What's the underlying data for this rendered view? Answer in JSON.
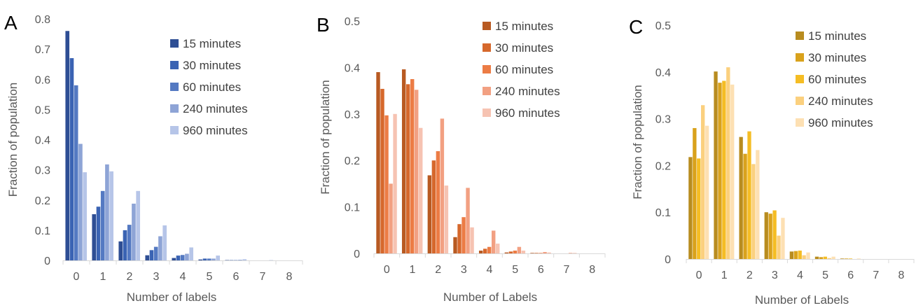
{
  "chart_data": [
    {
      "type": "bar",
      "panel_label": "A",
      "categories": [
        "0",
        "1",
        "2",
        "3",
        "4",
        "5",
        "6",
        "7",
        "8"
      ],
      "xlabel": "Number of labels",
      "ylabel": "Fraction of population",
      "ylim": [
        0,
        0.8
      ],
      "yticks": [
        "0",
        "0.1",
        "0.2",
        "0.3",
        "0.4",
        "0.5",
        "0.6",
        "0.7",
        "0.8"
      ],
      "legend_position": "top-right",
      "colors": [
        "#2e4e94",
        "#3a63b3",
        "#5479c2",
        "#8ea4d6",
        "#b6c5e8"
      ],
      "series": [
        {
          "name": "15 minutes",
          "values": [
            0.76,
            0.153,
            0.063,
            0.017,
            0.008,
            0.003,
            0.001,
            0,
            0
          ]
        },
        {
          "name": "30 minutes",
          "values": [
            0.67,
            0.178,
            0.1,
            0.034,
            0.016,
            0.006,
            0.001,
            0,
            0
          ]
        },
        {
          "name": "60 minutes",
          "values": [
            0.58,
            0.23,
            0.118,
            0.045,
            0.018,
            0.006,
            0.001,
            0,
            0
          ]
        },
        {
          "name": "240 minutes",
          "values": [
            0.386,
            0.318,
            0.188,
            0.08,
            0.022,
            0.006,
            0.002,
            0,
            0
          ]
        },
        {
          "name": "960 minutes",
          "values": [
            0.292,
            0.295,
            0.23,
            0.116,
            0.043,
            0.016,
            0.004,
            0.001,
            0
          ]
        }
      ]
    },
    {
      "type": "bar",
      "panel_label": "B",
      "categories": [
        "0",
        "1",
        "2",
        "3",
        "4",
        "5",
        "6",
        "7",
        "8"
      ],
      "xlabel": "Number of Labels",
      "ylabel": "Fraction of population",
      "ylim": [
        0,
        0.5
      ],
      "yticks": [
        "0",
        "0.1",
        "0.2",
        "0.3",
        "0.4",
        "0.5"
      ],
      "legend_position": "top-right",
      "colors": [
        "#b85a22",
        "#d6682c",
        "#ec7c45",
        "#f2a082",
        "#f6c3b2"
      ],
      "series": [
        {
          "name": "15 minutes",
          "values": [
            0.39,
            0.396,
            0.168,
            0.035,
            0.006,
            0.002,
            0.001,
            0,
            0
          ]
        },
        {
          "name": "30 minutes",
          "values": [
            0.354,
            0.364,
            0.2,
            0.063,
            0.01,
            0.004,
            0.001,
            0,
            0
          ]
        },
        {
          "name": "60 minutes",
          "values": [
            0.297,
            0.375,
            0.22,
            0.078,
            0.014,
            0.006,
            0.001,
            0,
            0
          ]
        },
        {
          "name": "240 minutes",
          "values": [
            0.15,
            0.352,
            0.29,
            0.141,
            0.049,
            0.014,
            0.003,
            0.001,
            0
          ]
        },
        {
          "name": "960 minutes",
          "values": [
            0.3,
            0.27,
            0.146,
            0.056,
            0.021,
            0.006,
            0.002,
            0.001,
            0
          ]
        }
      ]
    },
    {
      "type": "bar",
      "panel_label": "C",
      "categories": [
        "0",
        "1",
        "2",
        "3",
        "4",
        "5",
        "6",
        "7",
        "8"
      ],
      "xlabel": "Number of Labels",
      "ylabel": "Fraction of population",
      "ylim": [
        0,
        0.5
      ],
      "yticks": [
        "0",
        "0.1",
        "0.2",
        "0.3",
        "0.4",
        "0.5"
      ],
      "legend_position": "top-right",
      "colors": [
        "#b88c1f",
        "#d9a21c",
        "#f5bd24",
        "#fbd07e",
        "#fde0b3"
      ],
      "series": [
        {
          "name": "15 minutes",
          "values": [
            0.218,
            0.401,
            0.261,
            0.1,
            0.016,
            0.005,
            0.001,
            0,
            0
          ]
        },
        {
          "name": "30 minutes",
          "values": [
            0.28,
            0.377,
            0.225,
            0.097,
            0.017,
            0.004,
            0.001,
            0,
            0
          ]
        },
        {
          "name": "60 minutes",
          "values": [
            0.215,
            0.381,
            0.273,
            0.104,
            0.018,
            0.005,
            0.001,
            0,
            0
          ]
        },
        {
          "name": "240 minutes",
          "values": [
            0.329,
            0.41,
            0.203,
            0.05,
            0.008,
            0.002,
            0,
            0,
            0
          ]
        },
        {
          "name": "960 minutes",
          "values": [
            0.285,
            0.373,
            0.233,
            0.088,
            0.014,
            0.005,
            0.001,
            0,
            0
          ]
        }
      ]
    }
  ]
}
